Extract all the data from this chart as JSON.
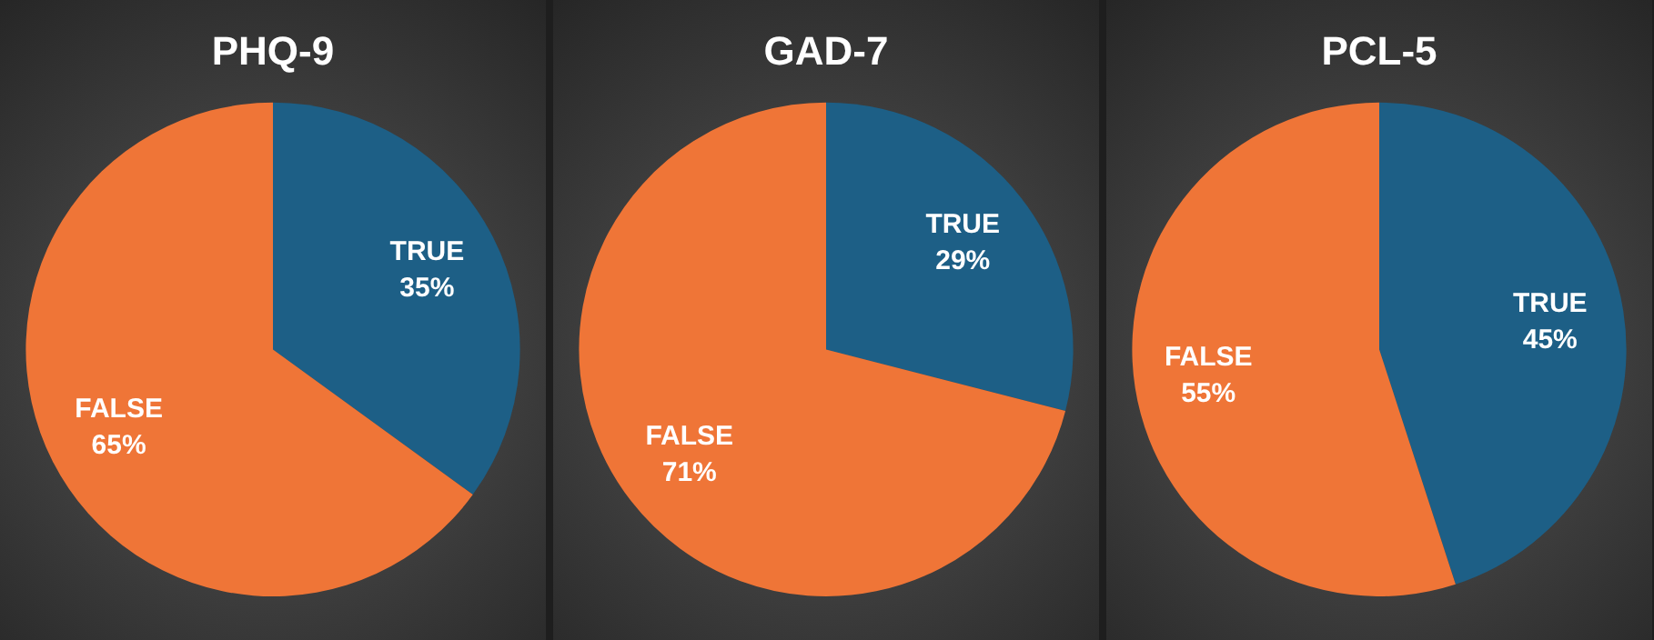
{
  "chart_data": [
    {
      "type": "pie",
      "title": "PHQ-9",
      "categories": [
        "TRUE",
        "FALSE"
      ],
      "values": [
        35,
        65
      ],
      "colors": [
        "#1d5f86",
        "#ef7537"
      ],
      "value_labels": [
        "35%",
        "65%"
      ]
    },
    {
      "type": "pie",
      "title": "GAD-7",
      "categories": [
        "TRUE",
        "FALSE"
      ],
      "values": [
        29,
        71
      ],
      "colors": [
        "#1d5f86",
        "#ef7537"
      ],
      "value_labels": [
        "29%",
        "71%"
      ]
    },
    {
      "type": "pie",
      "title": "PCL-5",
      "categories": [
        "TRUE",
        "FALSE"
      ],
      "values": [
        45,
        55
      ],
      "colors": [
        "#1d5f86",
        "#ef7537"
      ],
      "value_labels": [
        "45%",
        "55%"
      ]
    }
  ]
}
